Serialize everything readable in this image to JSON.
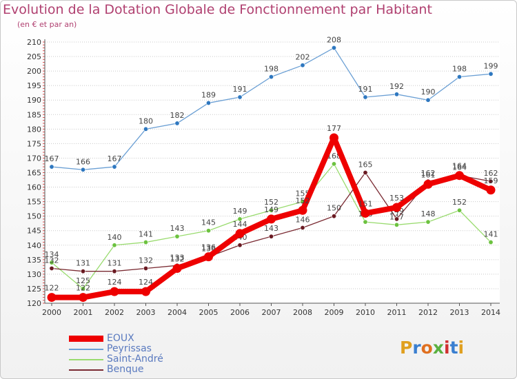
{
  "title": "Evolution de la Dotation Globale de Fonctionnement par Habitant",
  "subtitle": "(en € et par an)",
  "logo": "Proxiti",
  "chart_data": {
    "type": "line",
    "title": "Evolution de la Dotation Globale de Fonctionnement par Habitant",
    "ylabel": "(en € et par an)",
    "xlabel": "",
    "x": [
      "2000",
      "2001",
      "2002",
      "2003",
      "2004",
      "2005",
      "2006",
      "2007",
      "2008",
      "2009",
      "2010",
      "2011",
      "2012",
      "2013",
      "2014"
    ],
    "ylim": [
      120,
      210
    ],
    "yticks": [
      120,
      125,
      130,
      135,
      140,
      145,
      150,
      155,
      160,
      165,
      170,
      175,
      180,
      185,
      190,
      195,
      200,
      205,
      210
    ],
    "grid": "horizontal",
    "legend_position": "bottom-left",
    "series": [
      {
        "name": "Peyrissas",
        "color": "#6a9fd4",
        "marker": "#2f78c0",
        "values": [
          167,
          166,
          167,
          180,
          182,
          189,
          191,
          198,
          202,
          208,
          191,
          192,
          190,
          198,
          199
        ]
      },
      {
        "name": "Saint-André",
        "color": "#99db6e",
        "marker": "#6cc23f",
        "values": [
          134,
          125,
          140,
          141,
          143,
          145,
          149,
          152,
          155,
          168,
          148,
          147,
          148,
          152,
          141
        ]
      },
      {
        "name": "Benque",
        "color": "#7a2a32",
        "marker": "#6a1a22",
        "values": [
          132,
          131,
          131,
          132,
          133,
          136,
          140,
          143,
          146,
          150,
          165,
          149,
          162,
          164,
          162
        ]
      },
      {
        "name": "EOUX",
        "color": "#ee0000",
        "marker": "#ee0000",
        "values": [
          122,
          122,
          124,
          124,
          132,
          136,
          144,
          149,
          152,
          177,
          151,
          153,
          161,
          164,
          159
        ]
      }
    ],
    "legend": [
      "EOUX",
      "Peyrissas",
      "Saint-André",
      "Benque"
    ]
  }
}
